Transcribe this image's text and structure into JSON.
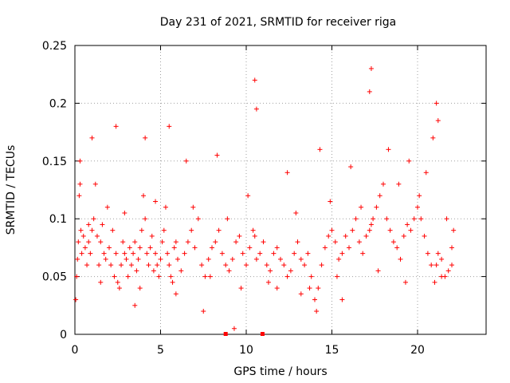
{
  "colors": {
    "series": "#ff0000",
    "axis": "#000000",
    "grid": "#a0a0a0"
  },
  "chart_data": {
    "type": "scatter",
    "title": "Day 231 of 2021, SRMTID for receiver riga",
    "xlabel": "GPS time / hours",
    "ylabel": "SRMTID / TECUs",
    "xlim": [
      0,
      24
    ],
    "ylim": [
      0,
      0.25
    ],
    "xticks": [
      0,
      5,
      10,
      15,
      20
    ],
    "yticks": [
      0,
      0.05,
      0.1,
      0.15,
      0.2,
      0.25
    ],
    "xtick_labels": [
      "0",
      "5",
      "10",
      "15",
      "20"
    ],
    "ytick_labels": [
      "0",
      "0.05",
      "0.1",
      "0.15",
      "0.2",
      "0.25"
    ],
    "grid": true,
    "legend": "none",
    "marker": "plus",
    "series": [
      {
        "name": "SRMTID",
        "x": [
          0.05,
          0.1,
          0.15,
          0.2,
          0.25,
          0.3,
          0.35,
          0.4,
          0.5,
          0.6,
          0.7,
          0.8,
          0.9,
          1.0,
          1.1,
          1.2,
          1.3,
          1.4,
          1.5,
          1.6,
          1.7,
          1.8,
          1.9,
          2.0,
          2.1,
          2.2,
          2.3,
          2.4,
          2.5,
          2.6,
          2.7,
          2.8,
          2.9,
          3.0,
          3.1,
          3.2,
          3.3,
          3.4,
          3.5,
          3.6,
          3.7,
          3.8,
          3.9,
          4.0,
          4.1,
          4.2,
          4.3,
          4.4,
          4.5,
          4.6,
          4.7,
          4.8,
          4.9,
          5.0,
          5.1,
          5.2,
          5.3,
          5.4,
          5.5,
          5.6,
          5.7,
          5.8,
          5.9,
          6.0,
          6.2,
          6.4,
          6.6,
          6.8,
          7.0,
          7.2,
          7.4,
          7.6,
          7.8,
          8.0,
          8.2,
          8.4,
          8.6,
          8.8,
          9.0,
          9.2,
          9.4,
          9.6,
          9.8,
          10.0,
          10.2,
          10.4,
          10.5,
          10.6,
          10.8,
          11.0,
          11.2,
          11.4,
          11.6,
          11.8,
          12.0,
          12.2,
          12.4,
          12.6,
          12.8,
          13.0,
          13.2,
          13.4,
          13.6,
          13.8,
          14.0,
          14.1,
          14.2,
          14.4,
          14.6,
          14.8,
          15.0,
          15.2,
          15.4,
          15.6,
          15.8,
          16.0,
          16.2,
          16.4,
          16.6,
          16.8,
          17.0,
          17.2,
          17.3,
          17.4,
          17.6,
          17.8,
          18.0,
          18.2,
          18.4,
          18.6,
          18.8,
          19.0,
          19.2,
          19.4,
          19.6,
          19.8,
          20.0,
          20.1,
          20.2,
          20.4,
          20.6,
          20.8,
          21.0,
          21.1,
          21.2,
          21.4,
          21.6,
          21.8,
          22.0,
          22.1,
          2.4,
          4.1,
          5.5,
          10.5,
          10.6,
          17.3,
          17.2,
          21.1,
          21.2,
          0.3,
          1.0,
          6.5,
          8.3,
          12.4,
          14.3,
          16.1,
          18.3,
          19.5,
          20.9,
          9.3,
          3.5,
          7.5,
          11.8,
          13.2,
          15.6,
          0.8,
          2.9,
          4.7,
          6.9,
          8.9,
          10.1,
          12.9,
          14.9,
          16.7,
          18.9,
          20.5,
          21.7,
          1.5,
          3.8,
          5.9,
          7.9,
          9.7,
          11.3,
          13.7,
          15.3,
          17.7,
          19.3,
          21.4,
          22.0
        ],
        "y": [
          0.03,
          0.05,
          0.065,
          0.08,
          0.12,
          0.13,
          0.09,
          0.07,
          0.085,
          0.075,
          0.06,
          0.08,
          0.07,
          0.09,
          0.1,
          0.13,
          0.085,
          0.06,
          0.08,
          0.095,
          0.07,
          0.065,
          0.11,
          0.075,
          0.06,
          0.09,
          0.05,
          0.07,
          0.045,
          0.04,
          0.06,
          0.08,
          0.07,
          0.065,
          0.05,
          0.075,
          0.06,
          0.07,
          0.08,
          0.055,
          0.065,
          0.075,
          0.09,
          0.12,
          0.1,
          0.07,
          0.06,
          0.075,
          0.085,
          0.055,
          0.07,
          0.06,
          0.05,
          0.065,
          0.08,
          0.09,
          0.11,
          0.07,
          0.06,
          0.05,
          0.045,
          0.075,
          0.08,
          0.065,
          0.055,
          0.07,
          0.08,
          0.09,
          0.075,
          0.1,
          0.06,
          0.05,
          0.065,
          0.075,
          0.08,
          0.09,
          0.07,
          0.06,
          0.055,
          0.065,
          0.08,
          0.085,
          0.07,
          0.06,
          0.075,
          0.09,
          0.085,
          0.065,
          0.07,
          0.08,
          0.06,
          0.055,
          0.07,
          0.075,
          0.065,
          0.06,
          0.05,
          0.055,
          0.07,
          0.08,
          0.065,
          0.06,
          0.07,
          0.05,
          0.03,
          0.02,
          0.04,
          0.06,
          0.075,
          0.085,
          0.09,
          0.08,
          0.065,
          0.07,
          0.085,
          0.075,
          0.09,
          0.1,
          0.08,
          0.07,
          0.085,
          0.09,
          0.095,
          0.1,
          0.11,
          0.12,
          0.13,
          0.1,
          0.09,
          0.08,
          0.075,
          0.065,
          0.085,
          0.095,
          0.09,
          0.1,
          0.11,
          0.12,
          0.1,
          0.085,
          0.07,
          0.06,
          0.045,
          0.06,
          0.07,
          0.065,
          0.05,
          0.055,
          0.075,
          0.09,
          0.18,
          0.17,
          0.18,
          0.22,
          0.195,
          0.23,
          0.21,
          0.2,
          0.185,
          0.15,
          0.17,
          0.15,
          0.155,
          0.14,
          0.16,
          0.145,
          0.16,
          0.15,
          0.17,
          0.005,
          0.025,
          0.02,
          0.04,
          0.035,
          0.03,
          0.095,
          0.105,
          0.115,
          0.11,
          0.1,
          0.12,
          0.105,
          0.115,
          0.11,
          0.13,
          0.14,
          0.1,
          0.045,
          0.04,
          0.035,
          0.05,
          0.04,
          0.045,
          0.04,
          0.05,
          0.055,
          0.045,
          0.05,
          0.06
        ]
      }
    ],
    "ground_markers": {
      "x": [
        8.8,
        10.95
      ],
      "y": [
        0,
        0
      ]
    }
  }
}
